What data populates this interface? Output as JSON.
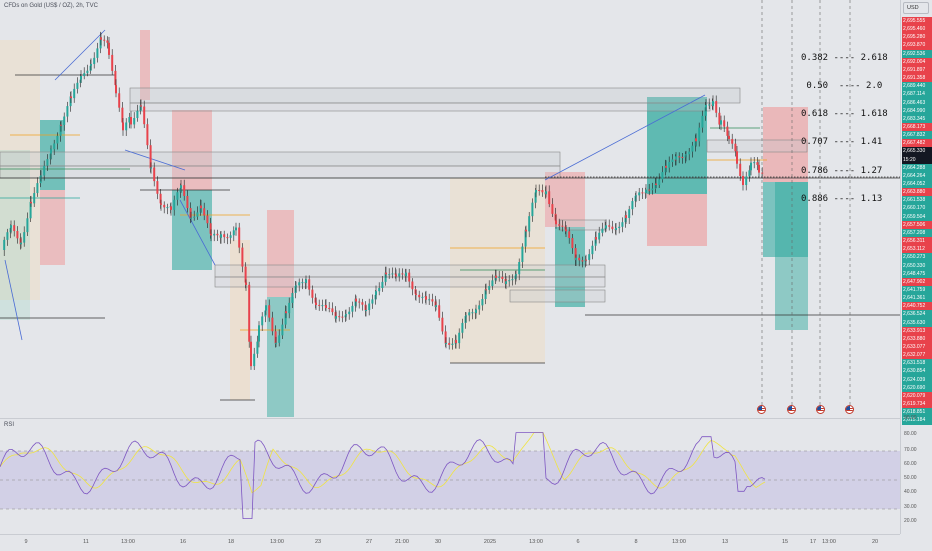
{
  "header": {
    "symbol_title": "CFDs on Gold (US$ / OZ), 2h, TVC"
  },
  "rsi": {
    "label": "RSI"
  },
  "currency": "USD",
  "fib_table": [
    "0.382 ---- 2.618",
    " 0.50  ---- 2.0",
    "0.618 ---- 1.618",
    "0.707 ---- 1.41",
    "0.786 ---- 1.27",
    "0.886 ---- 1.13"
  ],
  "price_labels": [
    {
      "text": "2,695.555",
      "color": "#e8424b"
    },
    {
      "text": "2,695.460",
      "color": "#e8424b"
    },
    {
      "text": "2,695.280",
      "color": "#e8424b"
    },
    {
      "text": "2,693.870",
      "color": "#e8424b"
    },
    {
      "text": "2,692.536",
      "color": "#26a69a"
    },
    {
      "text": "2,692.004",
      "color": "#e8424b"
    },
    {
      "text": "2,691.897",
      "color": "#e8424b"
    },
    {
      "text": "2,691.358",
      "color": "#e8424b"
    },
    {
      "text": "2,689.440",
      "color": "#26a69a"
    },
    {
      "text": "2,687.114",
      "color": "#26a69a"
    },
    {
      "text": "2,686.463",
      "color": "#26a69a"
    },
    {
      "text": "2,684.990",
      "color": "#26a69a"
    },
    {
      "text": "2,683.345",
      "color": "#26a69a"
    },
    {
      "text": "2,668.173",
      "color": "#e8424b"
    },
    {
      "text": "2,667.832",
      "color": "#26a69a"
    },
    {
      "text": "2,667.482",
      "color": "#e8424b"
    },
    {
      "text": "2,665.330",
      "color": "#131722"
    },
    {
      "text": "15:20",
      "color": "#131722"
    },
    {
      "text": "2,664.288",
      "color": "#26a69a"
    },
    {
      "text": "2,664.264",
      "color": "#26a69a"
    },
    {
      "text": "2,664.052",
      "color": "#26a69a"
    },
    {
      "text": "2,663.880",
      "color": "#e8424b"
    },
    {
      "text": "2,661.538",
      "color": "#26a69a"
    },
    {
      "text": "2,660.170",
      "color": "#26a69a"
    },
    {
      "text": "2,659.504",
      "color": "#26a69a"
    },
    {
      "text": "2,657.506",
      "color": "#e8424b"
    },
    {
      "text": "2,657.208",
      "color": "#26a69a"
    },
    {
      "text": "2,656.311",
      "color": "#e8424b"
    },
    {
      "text": "2,653.112",
      "color": "#e8424b"
    },
    {
      "text": "2,650.273",
      "color": "#26a69a"
    },
    {
      "text": "2,650.330",
      "color": "#26a69a"
    },
    {
      "text": "2,648.475",
      "color": "#26a69a"
    },
    {
      "text": "2,647.902",
      "color": "#e8424b"
    },
    {
      "text": "2,641.759",
      "color": "#26a69a"
    },
    {
      "text": "2,641.361",
      "color": "#26a69a"
    },
    {
      "text": "2,640.752",
      "color": "#e8424b"
    },
    {
      "text": "2,636.524",
      "color": "#26a69a"
    },
    {
      "text": "2,635.630",
      "color": "#26a69a"
    },
    {
      "text": "2,633.913",
      "color": "#e8424b"
    },
    {
      "text": "2,633.880",
      "color": "#e8424b"
    },
    {
      "text": "2,633.077",
      "color": "#e8424b"
    },
    {
      "text": "2,632.077",
      "color": "#e8424b"
    },
    {
      "text": "2,631.518",
      "color": "#26a69a"
    },
    {
      "text": "2,630.854",
      "color": "#26a69a"
    },
    {
      "text": "2,624.039",
      "color": "#26a69a"
    },
    {
      "text": "2,620.690",
      "color": "#26a69a"
    },
    {
      "text": "2,620.079",
      "color": "#e8424b"
    },
    {
      "text": "2,619.734",
      "color": "#e8424b"
    },
    {
      "text": "2,618.851",
      "color": "#26a69a"
    },
    {
      "text": "2,615.184",
      "color": "#26a69a"
    }
  ],
  "rsi_levels": [
    "90.00",
    "80.00",
    "70.00",
    "60.00",
    "50.00",
    "40.00",
    "30.00",
    "20.00"
  ],
  "time_labels": [
    "9",
    "11",
    "13:00",
    "16",
    "18",
    "13:00",
    "23",
    "27",
    "21:00",
    "30",
    "2025",
    "13:00",
    "6",
    "8",
    "13:00",
    "13",
    "15",
    "17",
    "13:00",
    "20"
  ],
  "colors": {
    "bull": "#26a69a",
    "bear": "#e8424b",
    "rsi_line": "#7e57c2",
    "rsi_ma": "#f0e442"
  }
}
